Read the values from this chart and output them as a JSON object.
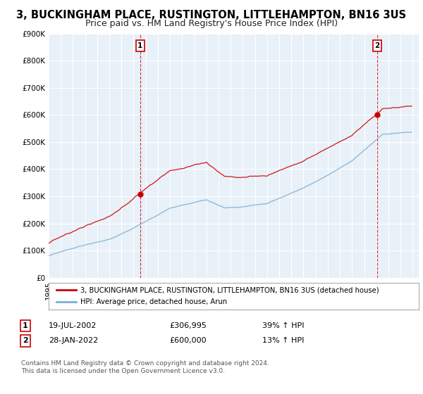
{
  "title": "3, BUCKINGHAM PLACE, RUSTINGTON, LITTLEHAMPTON, BN16 3US",
  "subtitle": "Price paid vs. HM Land Registry's House Price Index (HPI)",
  "ylim": [
    0,
    900000
  ],
  "yticks": [
    0,
    100000,
    200000,
    300000,
    400000,
    500000,
    600000,
    700000,
    800000,
    900000
  ],
  "ytick_labels": [
    "£0",
    "£100K",
    "£200K",
    "£300K",
    "£400K",
    "£500K",
    "£600K",
    "£700K",
    "£800K",
    "£900K"
  ],
  "xlim_start": 1995.0,
  "xlim_end": 2025.5,
  "sale1_x": 2002.54,
  "sale1_y": 306995,
  "sale1_label": "1",
  "sale1_date": "19-JUL-2002",
  "sale1_price": "£306,995",
  "sale1_hpi": "39% ↑ HPI",
  "sale2_x": 2022.08,
  "sale2_y": 600000,
  "sale2_label": "2",
  "sale2_date": "28-JAN-2022",
  "sale2_price": "£600,000",
  "sale2_hpi": "13% ↑ HPI",
  "line_color_sale": "#cc0000",
  "line_color_hpi": "#7aafd4",
  "vline_color": "#cc0000",
  "legend_label_sale": "3, BUCKINGHAM PLACE, RUSTINGTON, LITTLEHAMPTON, BN16 3US (detached house)",
  "legend_label_hpi": "HPI: Average price, detached house, Arun",
  "footnote": "Contains HM Land Registry data © Crown copyright and database right 2024.\nThis data is licensed under the Open Government Licence v3.0.",
  "bg_color": "#ffffff",
  "plot_bg_color": "#e8f0f8",
  "grid_color": "#ffffff",
  "title_fontsize": 10.5,
  "subtitle_fontsize": 9,
  "tick_fontsize": 7.5
}
